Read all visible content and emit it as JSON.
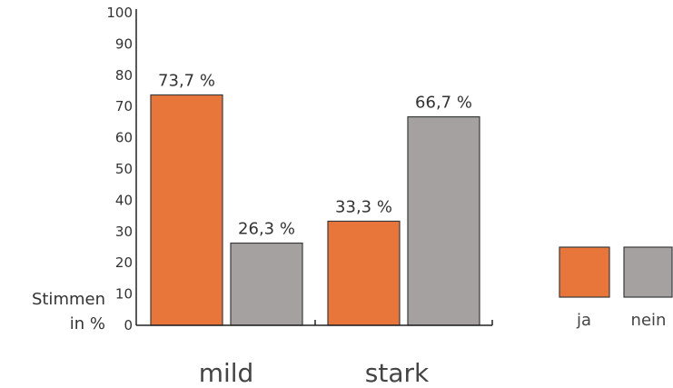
{
  "chart_data": {
    "type": "bar",
    "categories": [
      "mild",
      "stark"
    ],
    "series": [
      {
        "name": "ja",
        "values": [
          73.7,
          33.3
        ],
        "labels": [
          "73,7 %",
          "33,3 %"
        ],
        "color": "#e8763a"
      },
      {
        "name": "nein",
        "values": [
          26.3,
          66.7
        ],
        "labels": [
          "26,3 %",
          "66,7 %"
        ],
        "color": "#a5a1a1"
      }
    ],
    "ylabel": [
      "Stimmen",
      "in %"
    ],
    "ylim": [
      0,
      100
    ],
    "yticks": [
      "0",
      "10",
      "20",
      "30",
      "40",
      "50",
      "60",
      "70",
      "80",
      "90",
      "100"
    ],
    "grid": false,
    "legend_position": "right"
  }
}
